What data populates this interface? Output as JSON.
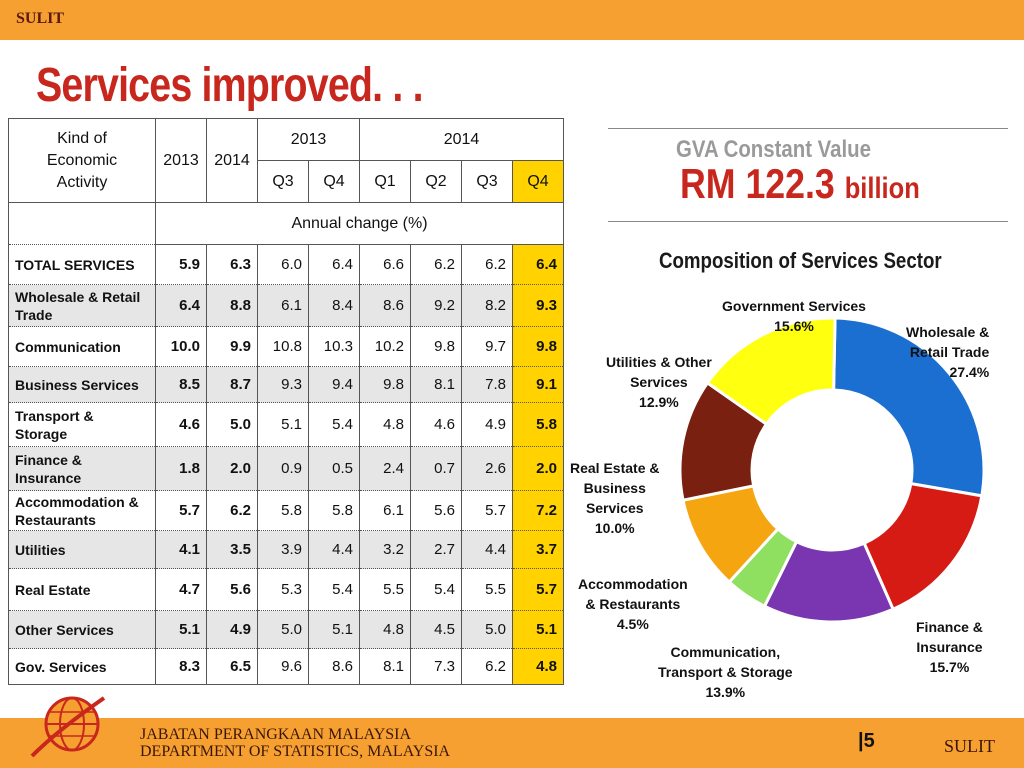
{
  "header": {
    "classification": "SULIT"
  },
  "title": "Services improved. . .",
  "table": {
    "kind_label": [
      "Kind of",
      "Economic",
      "Activity"
    ],
    "year_a": "2013",
    "year_b": "2014",
    "group_2013": "2013",
    "group_2014": "2014",
    "quarters": [
      "Q3",
      "Q4",
      "Q1",
      "Q2",
      "Q3",
      "Q4"
    ],
    "subheader": "Annual change  (%)",
    "rows": [
      {
        "label": "TOTAL SERVICES",
        "y2013": "5.9",
        "y2014": "6.3",
        "q": [
          "6.0",
          "6.4",
          "6.6",
          "6.2",
          "6.2",
          "6.4"
        ]
      },
      {
        "label": "Wholesale & Retail Trade",
        "y2013": "6.4",
        "y2014": "8.8",
        "q": [
          "6.1",
          "8.4",
          "8.6",
          "9.2",
          "8.2",
          "9.3"
        ]
      },
      {
        "label": "Communication",
        "y2013": "10.0",
        "y2014": "9.9",
        "q": [
          "10.8",
          "10.3",
          "10.2",
          "9.8",
          "9.7",
          "9.8"
        ]
      },
      {
        "label": "Business Services",
        "y2013": "8.5",
        "y2014": "8.7",
        "q": [
          "9.3",
          "9.4",
          "9.8",
          "8.1",
          "7.8",
          "9.1"
        ]
      },
      {
        "label": "Transport & Storage",
        "y2013": "4.6",
        "y2014": "5.0",
        "q": [
          "5.1",
          "5.4",
          "4.8",
          "4.6",
          "4.9",
          "5.8"
        ]
      },
      {
        "label": "Finance & Insurance",
        "y2013": "1.8",
        "y2014": "2.0",
        "q": [
          "0.9",
          "0.5",
          "2.4",
          "0.7",
          "2.6",
          "2.0"
        ]
      },
      {
        "label": "Accommodation & Restaurants",
        "y2013": "5.7",
        "y2014": "6.2",
        "q": [
          "5.8",
          "5.8",
          "6.1",
          "5.6",
          "5.7",
          "7.2"
        ]
      },
      {
        "label": "Utilities",
        "y2013": "4.1",
        "y2014": "3.5",
        "q": [
          "3.9",
          "4.4",
          "3.2",
          "2.7",
          "4.4",
          "3.7"
        ]
      },
      {
        "label": "Real Estate",
        "y2013": "4.7",
        "y2014": "5.6",
        "q": [
          "5.3",
          "5.4",
          "5.5",
          "5.4",
          "5.5",
          "5.7"
        ]
      },
      {
        "label": "Other Services",
        "y2013": "5.1",
        "y2014": "4.9",
        "q": [
          "5.0",
          "5.1",
          "4.8",
          "4.5",
          "5.0",
          "5.1"
        ]
      },
      {
        "label": "Gov. Services",
        "y2013": "8.3",
        "y2014": "6.5",
        "q": [
          "9.6",
          "8.6",
          "8.1",
          "7.3",
          "6.2",
          "4.8"
        ]
      }
    ]
  },
  "gva": {
    "title": "GVA Constant Value",
    "value": "RM 122.3",
    "unit": "billion"
  },
  "chart_data": {
    "type": "pie",
    "title": "Composition of Services Sector",
    "donut": true,
    "slices": [
      {
        "name": "Wholesale & Retail Trade",
        "value": 27.4,
        "label": "27.4%",
        "color": "#1a6fd0"
      },
      {
        "name": "Finance & Insurance",
        "value": 15.7,
        "label": "15.7%",
        "color": "#d61a14"
      },
      {
        "name": "Communication, Transport & Storage",
        "value": 13.9,
        "label": "13.9%",
        "color": "#7a35b0"
      },
      {
        "name": "Accommodation & Restaurants",
        "value": 4.5,
        "label": "4.5%",
        "color": "#8fe060"
      },
      {
        "name": "Real Estate & Business Services",
        "value": 10.0,
        "label": "10.0%",
        "color": "#f5a510"
      },
      {
        "name": "Utilities & Other Services",
        "value": 12.9,
        "label": "12.9%",
        "color": "#7a2010"
      },
      {
        "name": "Government Services",
        "value": 15.6,
        "label": "15.6%",
        "color": "#ffff10"
      }
    ]
  },
  "footer": {
    "org_ms": "JABATAN PERANGKAAN MALAYSIA",
    "org_en": "DEPARTMENT OF STATISTICS, MALAYSIA",
    "page": "5",
    "classification": "SULIT"
  }
}
